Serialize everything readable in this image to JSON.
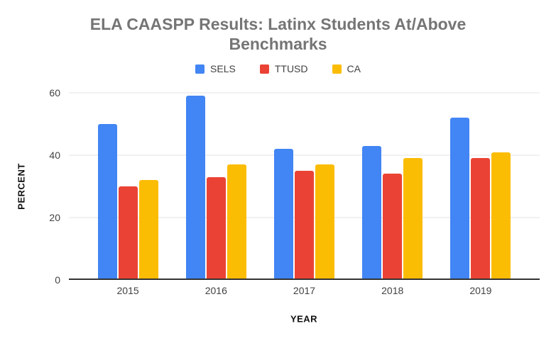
{
  "chart_data": {
    "type": "bar",
    "title": "ELA CAASPP Results: Latinx Students At/Above Benchmarks",
    "categories": [
      "2015",
      "2016",
      "2017",
      "2018",
      "2019"
    ],
    "series": [
      {
        "name": "SELS",
        "color": "#4285F4",
        "values": [
          50,
          59,
          42,
          43,
          52
        ]
      },
      {
        "name": "TTUSD",
        "color": "#EA4335",
        "values": [
          30,
          33,
          35,
          34,
          39
        ]
      },
      {
        "name": "CA",
        "color": "#FBBC04",
        "values": [
          32,
          37,
          37,
          39,
          41
        ]
      }
    ],
    "xlabel": "YEAR",
    "ylabel": "PERCENT",
    "ylim": [
      0,
      60
    ],
    "yticks": [
      0,
      20,
      40,
      60
    ],
    "grid": true,
    "legend_position": "top"
  },
  "colors": {
    "title_text": "#757575",
    "axis_text": "#424242",
    "gridline": "#e3e3e3",
    "baseline": "#333333",
    "background": "#ffffff"
  }
}
